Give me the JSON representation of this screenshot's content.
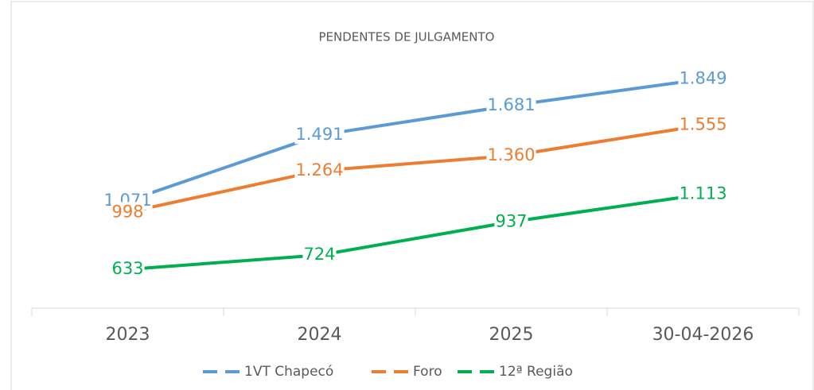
{
  "chart_data": {
    "type": "line",
    "title": "PENDENTES DE JULGAMENTO",
    "categories": [
      "2023",
      "2024",
      "2025",
      "30-04-2026"
    ],
    "ylim": [
      400,
      2000
    ],
    "series": [
      {
        "name": "1VT Chapecó",
        "color": "#5b9bd5",
        "values": [
          1071,
          1491,
          1681,
          1849
        ],
        "value_labels": [
          "1.071",
          "1.491",
          "1.681",
          "1.849"
        ]
      },
      {
        "name": "Foro",
        "color": "#ed7d31",
        "values": [
          998,
          1264,
          1360,
          1555
        ],
        "value_labels": [
          "998",
          "1.264",
          "1.360",
          "1.555"
        ]
      },
      {
        "name": "12ª Região",
        "color": "#00b050",
        "values": [
          633,
          724,
          937,
          1113
        ],
        "value_labels": [
          "633",
          "724",
          "937",
          "1.113"
        ]
      }
    ],
    "legend": "bottom"
  }
}
